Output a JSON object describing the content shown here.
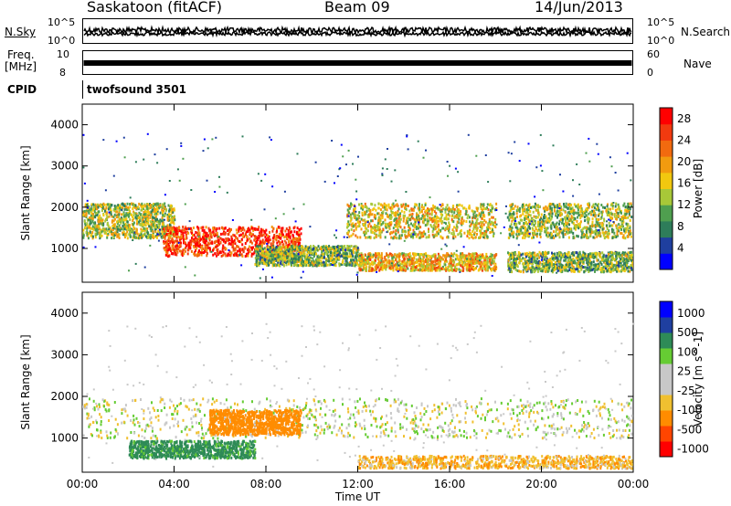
{
  "header": {
    "station": "Saskatoon (fitACF)",
    "beam": "Beam 09",
    "date": "14/Jun/2013"
  },
  "top_panels": {
    "nsky_label": "N.Sky",
    "nsky_ticks": [
      "10^5",
      "10^0"
    ],
    "nsearch_label": "N.Search",
    "nsearch_ticks": [
      "10^5",
      "10^0"
    ],
    "freq_label_1": "Freq.",
    "freq_label_2": "[MHz]",
    "freq_ticks": [
      "10",
      "8"
    ],
    "nave_label": "Nave",
    "nave_ticks": [
      "60",
      "0"
    ],
    "cpid_label": "CPID",
    "cpid_value": "twofsound 3501"
  },
  "colors": {
    "power_scale": [
      "#0000ff",
      "#1f3f9f",
      "#2e7d5a",
      "#4f9f4f",
      "#a8c838",
      "#f2c80f",
      "#f29b0f",
      "#f26a0f",
      "#f23a0f",
      "#ff0000"
    ],
    "velocity_scale": [
      "#0000ff",
      "#1f3fa0",
      "#2e8b57",
      "#66cc33",
      "#c8c8c8",
      "#c8c8c8",
      "#f0c030",
      "#ff8c00",
      "#ff4500",
      "#ff0000"
    ]
  },
  "chart_data": [
    {
      "type": "heatmap",
      "title": "",
      "xlabel": "Time UT",
      "ylabel": "Slant Range [km]",
      "xticks": [
        "00:00",
        "04:00",
        "08:00",
        "12:00",
        "16:00",
        "20:00",
        "00:00"
      ],
      "yticks": [
        "1000",
        "2000",
        "3000",
        "4000"
      ],
      "colorbar_label": "Power [dB]",
      "colorbar_ticks": [
        "4",
        "8",
        "12",
        "16",
        "20",
        "24",
        "28"
      ],
      "xlim": [
        0,
        24
      ],
      "ylim": [
        180,
        4500
      ],
      "clim": [
        0,
        30
      ],
      "bands": [
        {
          "t0": 0.0,
          "t1": 4.0,
          "r_center": 1700,
          "r_width": 700,
          "value": 14
        },
        {
          "t0": 3.5,
          "t1": 9.5,
          "r_center": 1200,
          "r_width": 600,
          "value": 26
        },
        {
          "t0": 7.5,
          "t1": 12.0,
          "r_center": 850,
          "r_width": 400,
          "value": 12
        },
        {
          "t0": 11.5,
          "t1": 18.0,
          "r_center": 1700,
          "r_width": 700,
          "value": 16
        },
        {
          "t0": 12.0,
          "t1": 18.0,
          "r_center": 700,
          "r_width": 350,
          "value": 18
        },
        {
          "t0": 18.5,
          "t1": 24.0,
          "r_center": 1700,
          "r_width": 700,
          "value": 14
        },
        {
          "t0": 18.5,
          "t1": 24.0,
          "r_center": 700,
          "r_width": 400,
          "value": 12
        }
      ]
    },
    {
      "type": "heatmap",
      "title": "",
      "xlabel": "Time UT",
      "ylabel": "Slant Range [km]",
      "xticks": [
        "00:00",
        "04:00",
        "08:00",
        "12:00",
        "16:00",
        "20:00",
        "00:00"
      ],
      "yticks": [
        "1000",
        "2000",
        "3000",
        "4000"
      ],
      "colorbar_label": "Velocity [m s^-1]",
      "colorbar_ticks": [
        "1000",
        "500",
        "100",
        "25",
        "-25",
        "-100",
        "-500",
        "-1000"
      ],
      "xlim": [
        0,
        24
      ],
      "ylim": [
        180,
        4500
      ],
      "bands": [
        {
          "t0": 0.0,
          "t1": 24.0,
          "r_center": 1500,
          "r_width": 800,
          "value": 0
        },
        {
          "t0": 2.0,
          "t1": 7.5,
          "r_center": 750,
          "r_width": 350,
          "value": 150
        },
        {
          "t0": 5.5,
          "t1": 9.5,
          "r_center": 1400,
          "r_width": 500,
          "value": -300
        },
        {
          "t0": 12.0,
          "t1": 24.0,
          "r_center": 450,
          "r_width": 250,
          "value": -80
        }
      ]
    }
  ]
}
